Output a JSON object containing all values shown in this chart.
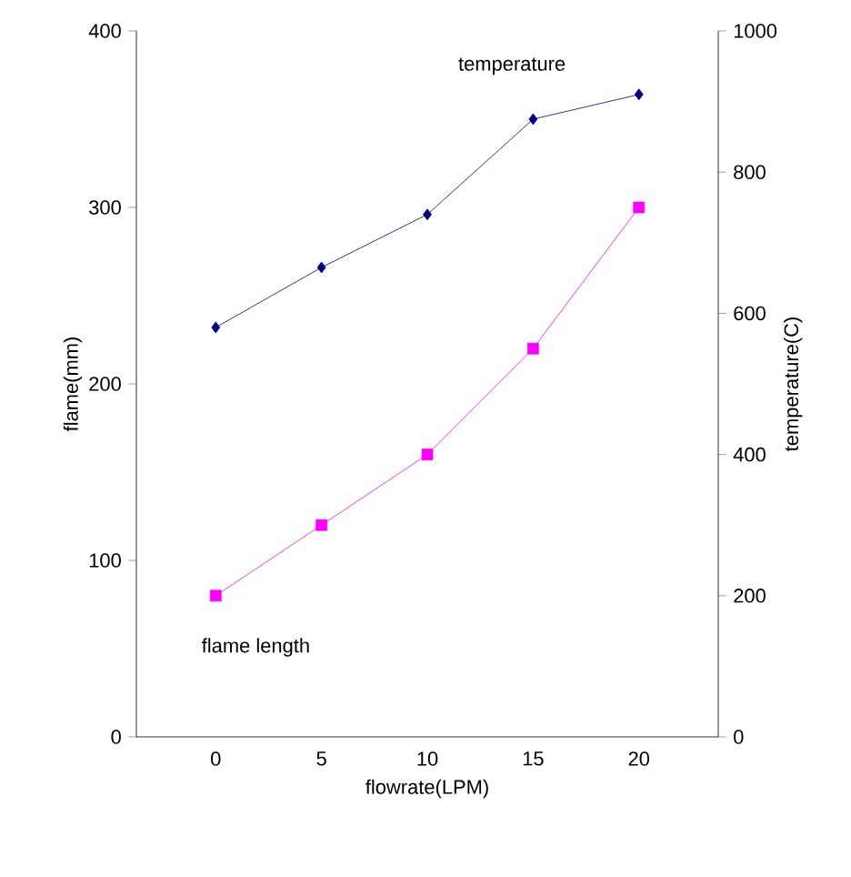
{
  "chart_data": {
    "type": "line",
    "xlabel": "flowrate(LPM)",
    "ylabel": "flame(mm)",
    "y2label": "temperature(C)",
    "categories": [
      "0",
      "5",
      "10",
      "15",
      "20"
    ],
    "series": [
      {
        "name": "temperature",
        "color": "#000080",
        "marker": "diamond",
        "axis": "y2",
        "values": [
          580,
          665,
          740,
          875,
          910
        ]
      },
      {
        "name": "flame length",
        "color": "#ff00ff",
        "marker": "square",
        "values": [
          80,
          120,
          160,
          220,
          300
        ]
      }
    ],
    "ylim": [
      0,
      400
    ],
    "yticks": [
      0,
      100,
      200,
      300,
      400
    ],
    "y2lim": [
      0,
      1000
    ],
    "y2ticks": [
      0,
      200,
      400,
      600,
      800,
      1000
    ],
    "grid": false
  }
}
